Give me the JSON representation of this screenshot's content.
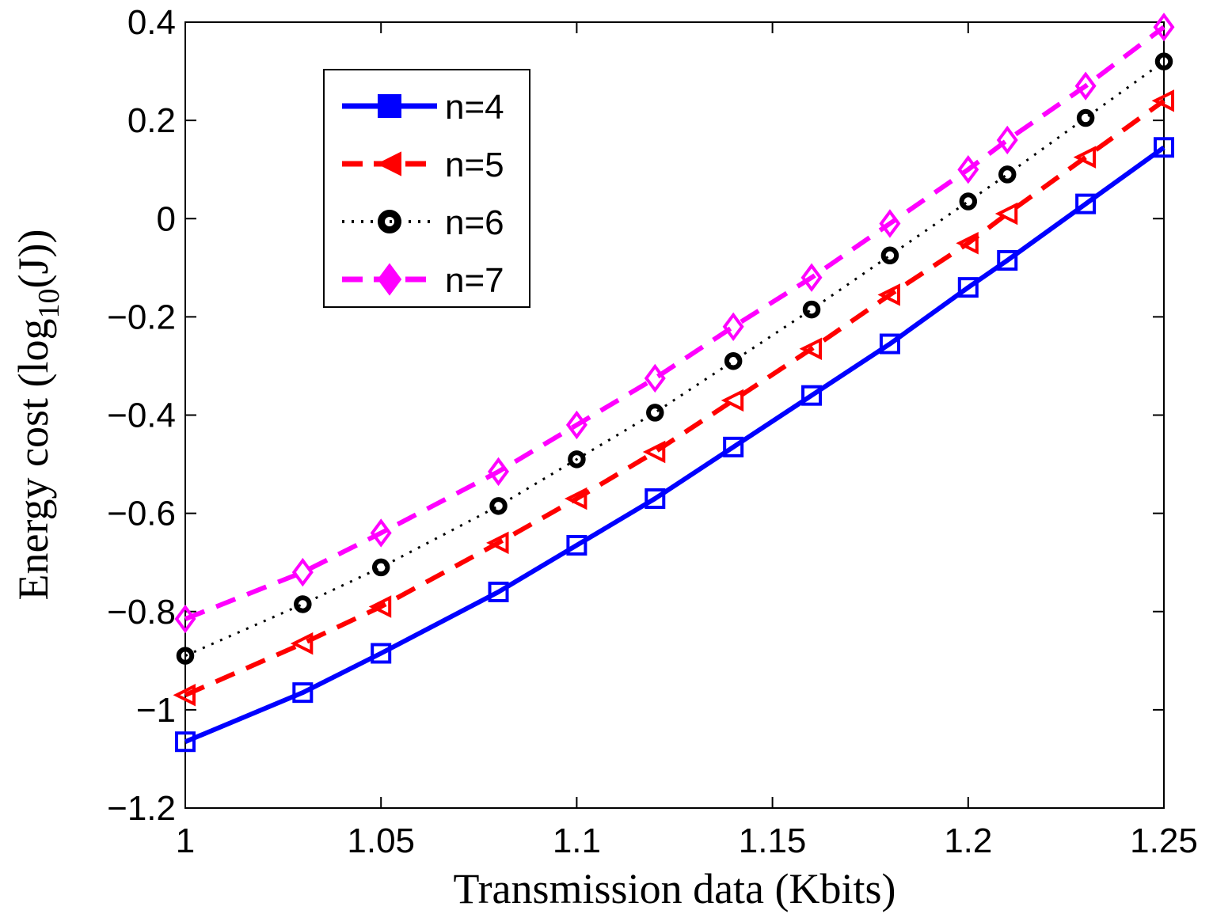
{
  "chart_data": {
    "type": "line",
    "title": "",
    "xlabel": "Transmission data (Kbits)",
    "ylabel_prefix": "Energy cost (log",
    "ylabel_sub": "10",
    "ylabel_suffix": "(J))",
    "xlim": [
      1,
      1.25
    ],
    "ylim": [
      -1.2,
      0.4
    ],
    "xticks": [
      1,
      1.05,
      1.1,
      1.15,
      1.2,
      1.25
    ],
    "xtick_labels": [
      "1",
      "1.05",
      "1.1",
      "1.15",
      "1.2",
      "1.25"
    ],
    "yticks": [
      -1.2,
      -1,
      -0.8,
      -0.6,
      -0.4,
      -0.2,
      0,
      0.2,
      0.4
    ],
    "ytick_labels": [
      "−1.2",
      "−1",
      "−0.8",
      "−0.6",
      "−0.4",
      "−0.2",
      "0",
      "0.2",
      "0.4"
    ],
    "grid": false,
    "legend_position": "top-left",
    "x": [
      1,
      1.03,
      1.05,
      1.08,
      1.1,
      1.12,
      1.14,
      1.16,
      1.18,
      1.2,
      1.21,
      1.23,
      1.25
    ],
    "series": [
      {
        "name": "n=4",
        "color": "#0000ff",
        "line_style": "solid",
        "marker": "square",
        "values": [
          -1.065,
          -0.965,
          -0.885,
          -0.76,
          -0.665,
          -0.57,
          -0.465,
          -0.36,
          -0.255,
          -0.14,
          -0.085,
          0.03,
          0.145
        ]
      },
      {
        "name": "n=5",
        "color": "#ff0000",
        "line_style": "dashed",
        "marker": "triangle-left",
        "values": [
          -0.97,
          -0.865,
          -0.79,
          -0.66,
          -0.57,
          -0.475,
          -0.37,
          -0.265,
          -0.155,
          -0.05,
          0.01,
          0.125,
          0.24
        ]
      },
      {
        "name": "n=6",
        "color": "#000000",
        "line_style": "dotted",
        "marker": "circle",
        "values": [
          -0.89,
          -0.785,
          -0.71,
          -0.585,
          -0.49,
          -0.395,
          -0.29,
          -0.185,
          -0.075,
          0.035,
          0.09,
          0.205,
          0.32
        ]
      },
      {
        "name": "n=7",
        "color": "#ff00ff",
        "line_style": "dashed",
        "marker": "diamond",
        "values": [
          -0.815,
          -0.72,
          -0.64,
          -0.515,
          -0.42,
          -0.325,
          -0.22,
          -0.12,
          -0.01,
          0.1,
          0.16,
          0.27,
          0.39
        ]
      }
    ]
  }
}
